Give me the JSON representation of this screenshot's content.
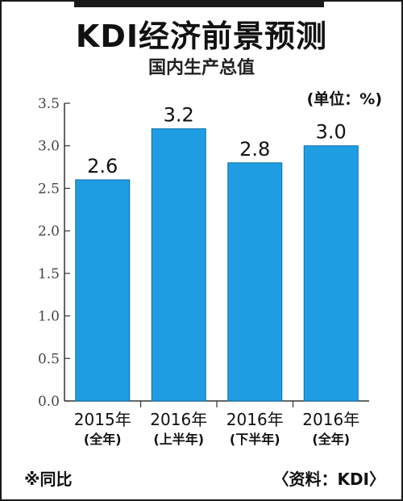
{
  "title": "KDI经济前景预测",
  "subtitle": "国内生产总值",
  "unit_label": "(单位：%)",
  "footnote": "※同比",
  "source": "〈资料：KDI〉",
  "colors": {
    "bar": "#1f9de3",
    "bar_edge": "#0d6fa8",
    "axis": "#333333"
  },
  "chart_data": {
    "type": "bar",
    "categories": [
      {
        "line1": "2015年",
        "line2": "(全年)"
      },
      {
        "line1": "2016年",
        "line2": "(上半年)"
      },
      {
        "line1": "2016年",
        "line2": "(下半年)"
      },
      {
        "line1": "2016年",
        "line2": "(全年)"
      }
    ],
    "values": [
      2.6,
      3.2,
      2.8,
      3.0
    ],
    "value_labels": [
      "2.6",
      "3.2",
      "2.8",
      "3.0"
    ],
    "ylim": [
      0,
      3.5
    ],
    "yticks": [
      "0.0",
      "0.5",
      "1.0",
      "1.5",
      "2.0",
      "2.5",
      "3.0",
      "3.5"
    ],
    "grid": false
  }
}
